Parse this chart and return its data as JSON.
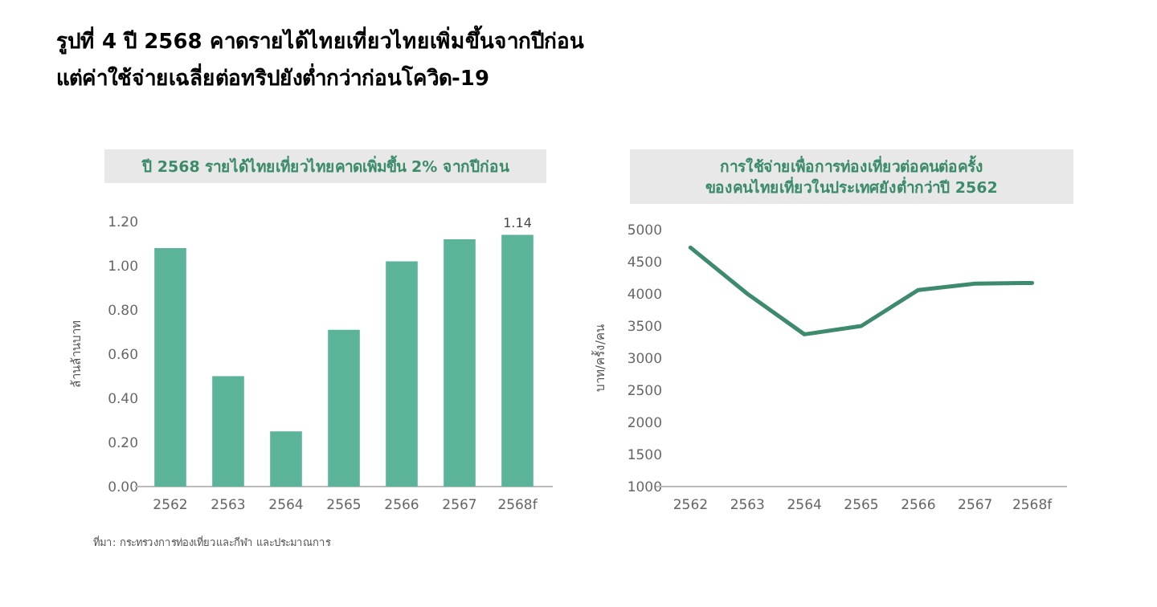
{
  "chart_data": [
    {
      "type": "bar",
      "title": "ปี 2568 รายได้ไทยเที่ยวไทยคาดเพิ่มขึ้น 2% จากปีก่อน",
      "ylabel": "ล้านล้านบาท",
      "annotations": [
        "รูปที่ 4 ปี 2568 คาดรายได้ไทยเที่ยวไทยเพิ่มขึ้นจากปีก่อน แต่ค่าใช้จ่ายเฉลี่ยต่อทริปยังต่ำกว่าก่อนโควิด-19",
        "ที่มา: กระทรวงการท่องเที่ยวและกีฬา และประมาณการ"
      ],
      "categories": [
        "2562",
        "2563",
        "2564",
        "2565",
        "2566",
        "2567",
        "2568f"
      ],
      "values": [
        1.08,
        0.5,
        0.25,
        0.71,
        1.02,
        1.12,
        1.14
      ],
      "value_labels": [
        null,
        null,
        null,
        null,
        null,
        null,
        "1.14"
      ],
      "color": "#5bb39a",
      "ylim": [
        0,
        1.2
      ],
      "yticks": [
        {
          "value": 0,
          "label": "0.00"
        },
        {
          "value": 0.2,
          "label": "0.20"
        },
        {
          "value": 0.4,
          "label": "0.40"
        },
        {
          "value": 0.6,
          "label": "0.60"
        },
        {
          "value": 0.8,
          "label": "0.80"
        },
        {
          "value": 1.0,
          "label": "1.00"
        },
        {
          "value": 1.2,
          "label": "1.20"
        }
      ]
    },
    {
      "type": "line",
      "title": "การใช้จ่ายเพื่อการท่องเที่ยวต่อคนต่อครั้ง\nของคนไทยเที่ยวในประเทศยังต่ำกว่าปี 2562",
      "ylabel": "บาท/ครั้ง/คน",
      "categories": [
        "2562",
        "2563",
        "2564",
        "2565",
        "2566",
        "2567",
        "2568f"
      ],
      "values": [
        4720,
        4000,
        3370,
        3500,
        4060,
        4160,
        4170
      ],
      "color": "#3d8a6d",
      "ylim": [
        1000,
        5000
      ],
      "yticks": [
        1000,
        1500,
        2000,
        2500,
        3000,
        3500,
        4000,
        4500,
        5000
      ]
    }
  ]
}
